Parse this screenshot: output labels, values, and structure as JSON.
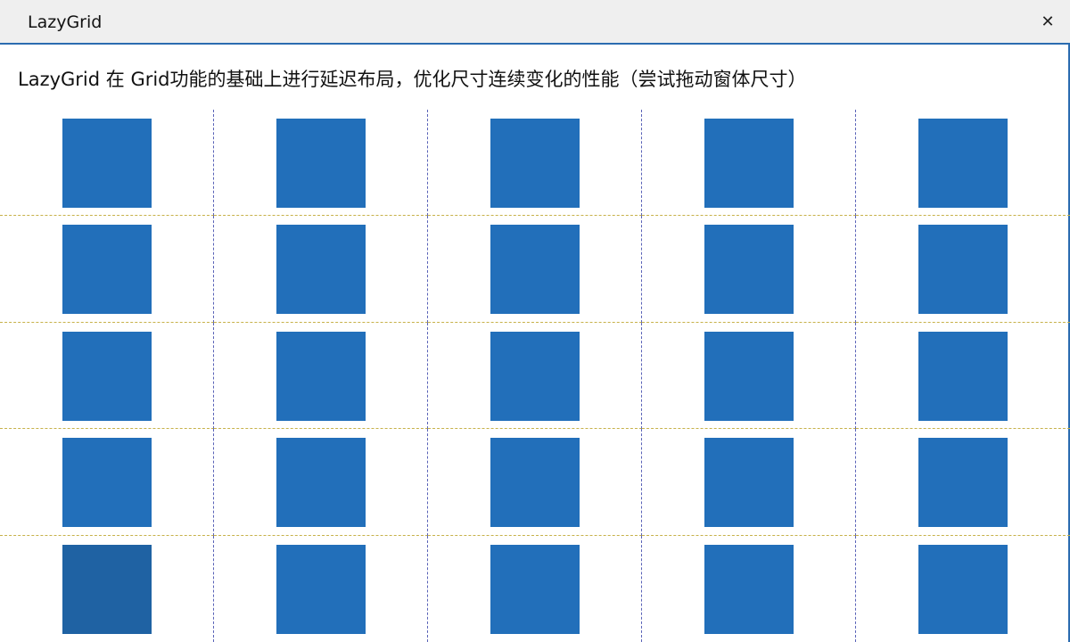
{
  "window": {
    "title": "LazyGrid",
    "close_glyph": "✕",
    "close_icon": "close-icon"
  },
  "description": "LazyGrid 在 Grid功能的基础上进行延迟布局，优化尺寸连续变化的性能（尝试拖动窗体尺寸）",
  "grid": {
    "rows": 5,
    "columns": 5,
    "box_color": "#226fba",
    "hover_box_color": "#1f62a3",
    "column_divider_color": "#5a63b8",
    "row_divider_color": "#c7b24a",
    "hovered_cell": {
      "row": 4,
      "col": 0
    }
  }
}
